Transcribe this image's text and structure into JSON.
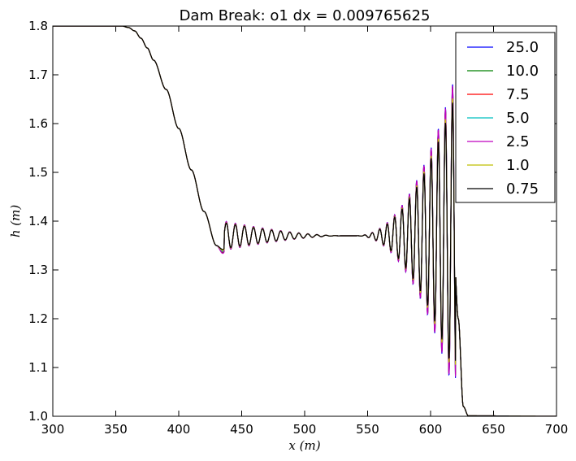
{
  "chart_data": {
    "type": "line",
    "title": "Dam Break: o1 dx = 0.009765625",
    "xlabel": "x (m)",
    "ylabel": "h (m)",
    "xlim": [
      300,
      700
    ],
    "ylim": [
      1.0,
      1.8
    ],
    "xticks": [
      300,
      350,
      400,
      450,
      500,
      550,
      600,
      650,
      700
    ],
    "yticks": [
      1.0,
      1.1,
      1.2,
      1.3,
      1.4,
      1.5,
      1.6,
      1.7,
      1.8
    ],
    "xtick_labels": [
      "300",
      "350",
      "400",
      "450",
      "500",
      "550",
      "600",
      "650",
      "700"
    ],
    "ytick_labels": [
      "1.0",
      "1.1",
      "1.2",
      "1.3",
      "1.4",
      "1.5",
      "1.6",
      "1.7",
      "1.8"
    ],
    "grid": false,
    "legend_position": "top-right",
    "series": [
      {
        "name": "25.0",
        "color": "#0000ff",
        "amp_scale": 1.08,
        "values": [
          [
            300,
            1.8
          ],
          [
            355,
            1.8
          ],
          [
            360,
            1.797
          ],
          [
            365,
            1.79
          ],
          [
            370,
            1.775
          ],
          [
            375,
            1.755
          ],
          [
            380,
            1.73
          ],
          [
            390,
            1.67
          ],
          [
            400,
            1.59
          ],
          [
            410,
            1.505
          ],
          [
            420,
            1.42
          ],
          [
            430,
            1.35
          ],
          [
            435,
            1.335
          ],
          [
            440,
            1.36
          ],
          [
            445,
            1.39
          ],
          [
            450,
            1.375
          ],
          [
            460,
            1.37
          ],
          [
            500,
            1.37
          ],
          [
            550,
            1.37
          ],
          [
            600,
            1.37
          ],
          [
            618,
            1.37
          ],
          [
            622,
            1.2
          ],
          [
            626,
            1.02
          ],
          [
            630,
            1.001
          ],
          [
            700,
            1.0
          ]
        ]
      },
      {
        "name": "10.0",
        "color": "#008000",
        "amp_scale": 1.06,
        "values": [
          [
            300,
            1.8
          ],
          [
            355,
            1.8
          ],
          [
            360,
            1.797
          ],
          [
            365,
            1.79
          ],
          [
            370,
            1.775
          ],
          [
            375,
            1.755
          ],
          [
            380,
            1.73
          ],
          [
            390,
            1.67
          ],
          [
            400,
            1.59
          ],
          [
            410,
            1.505
          ],
          [
            420,
            1.42
          ],
          [
            430,
            1.35
          ],
          [
            435,
            1.336
          ],
          [
            440,
            1.36
          ],
          [
            445,
            1.39
          ],
          [
            450,
            1.375
          ],
          [
            460,
            1.37
          ],
          [
            500,
            1.37
          ],
          [
            550,
            1.37
          ],
          [
            600,
            1.37
          ],
          [
            618,
            1.37
          ],
          [
            622,
            1.2
          ],
          [
            626,
            1.02
          ],
          [
            630,
            1.001
          ],
          [
            700,
            1.0
          ]
        ]
      },
      {
        "name": "7.5",
        "color": "#ff0000",
        "amp_scale": 1.05,
        "values": [
          [
            300,
            1.8
          ],
          [
            355,
            1.8
          ],
          [
            360,
            1.797
          ],
          [
            365,
            1.79
          ],
          [
            370,
            1.775
          ],
          [
            375,
            1.755
          ],
          [
            380,
            1.73
          ],
          [
            390,
            1.67
          ],
          [
            400,
            1.59
          ],
          [
            410,
            1.505
          ],
          [
            420,
            1.42
          ],
          [
            430,
            1.35
          ],
          [
            435,
            1.337
          ],
          [
            440,
            1.36
          ],
          [
            445,
            1.39
          ],
          [
            450,
            1.375
          ],
          [
            460,
            1.37
          ],
          [
            500,
            1.37
          ],
          [
            550,
            1.37
          ],
          [
            600,
            1.37
          ],
          [
            618,
            1.37
          ],
          [
            622,
            1.2
          ],
          [
            626,
            1.02
          ],
          [
            630,
            1.001
          ],
          [
            700,
            1.0
          ]
        ]
      },
      {
        "name": "5.0",
        "color": "#00bfbf",
        "amp_scale": 1.03,
        "values": [
          [
            300,
            1.8
          ],
          [
            355,
            1.8
          ],
          [
            360,
            1.797
          ],
          [
            365,
            1.79
          ],
          [
            370,
            1.775
          ],
          [
            375,
            1.755
          ],
          [
            380,
            1.73
          ],
          [
            390,
            1.67
          ],
          [
            400,
            1.59
          ],
          [
            410,
            1.505
          ],
          [
            420,
            1.42
          ],
          [
            430,
            1.35
          ],
          [
            435,
            1.338
          ],
          [
            440,
            1.36
          ],
          [
            445,
            1.39
          ],
          [
            450,
            1.375
          ],
          [
            460,
            1.37
          ],
          [
            500,
            1.37
          ],
          [
            550,
            1.37
          ],
          [
            600,
            1.37
          ],
          [
            618,
            1.37
          ],
          [
            622,
            1.2
          ],
          [
            626,
            1.02
          ],
          [
            630,
            1.001
          ],
          [
            700,
            1.0
          ]
        ]
      },
      {
        "name": "2.5",
        "color": "#bf00bf",
        "amp_scale": 1.07,
        "values": [
          [
            300,
            1.8
          ],
          [
            355,
            1.8
          ],
          [
            360,
            1.797
          ],
          [
            365,
            1.79
          ],
          [
            370,
            1.775
          ],
          [
            375,
            1.755
          ],
          [
            380,
            1.73
          ],
          [
            390,
            1.67
          ],
          [
            400,
            1.59
          ],
          [
            410,
            1.505
          ],
          [
            420,
            1.42
          ],
          [
            430,
            1.35
          ],
          [
            435,
            1.334
          ],
          [
            440,
            1.36
          ],
          [
            445,
            1.39
          ],
          [
            450,
            1.375
          ],
          [
            460,
            1.37
          ],
          [
            500,
            1.37
          ],
          [
            550,
            1.37
          ],
          [
            600,
            1.37
          ],
          [
            618,
            1.37
          ],
          [
            622,
            1.2
          ],
          [
            626,
            1.02
          ],
          [
            630,
            1.001
          ],
          [
            700,
            1.0
          ]
        ]
      },
      {
        "name": "1.0",
        "color": "#bfbf00",
        "amp_scale": 0.98,
        "values": [
          [
            300,
            1.8
          ],
          [
            355,
            1.8
          ],
          [
            360,
            1.797
          ],
          [
            365,
            1.79
          ],
          [
            370,
            1.775
          ],
          [
            375,
            1.755
          ],
          [
            380,
            1.73
          ],
          [
            390,
            1.67
          ],
          [
            400,
            1.59
          ],
          [
            410,
            1.505
          ],
          [
            420,
            1.42
          ],
          [
            430,
            1.35
          ],
          [
            435,
            1.34
          ],
          [
            440,
            1.36
          ],
          [
            445,
            1.39
          ],
          [
            450,
            1.375
          ],
          [
            460,
            1.37
          ],
          [
            500,
            1.37
          ],
          [
            550,
            1.37
          ],
          [
            600,
            1.37
          ],
          [
            618,
            1.37
          ],
          [
            622,
            1.2
          ],
          [
            626,
            1.02
          ],
          [
            630,
            1.001
          ],
          [
            700,
            1.0
          ]
        ]
      },
      {
        "name": "0.75",
        "color": "#000000",
        "amp_scale": 0.95,
        "values": [
          [
            300,
            1.8
          ],
          [
            355,
            1.8
          ],
          [
            360,
            1.797
          ],
          [
            365,
            1.79
          ],
          [
            370,
            1.775
          ],
          [
            375,
            1.755
          ],
          [
            380,
            1.73
          ],
          [
            390,
            1.67
          ],
          [
            400,
            1.59
          ],
          [
            410,
            1.505
          ],
          [
            420,
            1.42
          ],
          [
            430,
            1.35
          ],
          [
            435,
            1.342
          ],
          [
            440,
            1.36
          ],
          [
            445,
            1.39
          ],
          [
            450,
            1.375
          ],
          [
            460,
            1.37
          ],
          [
            500,
            1.37
          ],
          [
            550,
            1.37
          ],
          [
            600,
            1.37
          ],
          [
            618,
            1.37
          ],
          [
            622,
            1.2
          ],
          [
            626,
            1.02
          ],
          [
            630,
            1.001
          ],
          [
            700,
            1.0
          ]
        ]
      }
    ],
    "oscillations": {
      "left_train": {
        "x_start": 436,
        "x_end": 530,
        "wavelength": 7.2,
        "amp_start": 0.028,
        "amp_end": 0.0
      },
      "right_train": {
        "x_start": 540,
        "x_end": 620,
        "wavelength": 6.1,
        "amp_start": 0.0,
        "amp_end": 0.31
      },
      "mean_level": 1.37
    }
  }
}
